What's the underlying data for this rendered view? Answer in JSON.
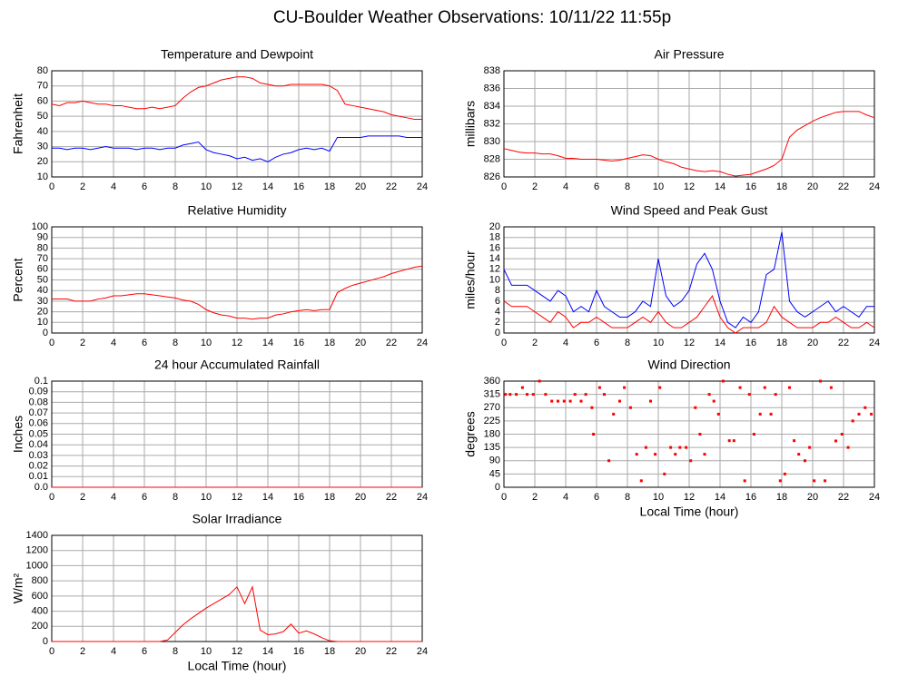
{
  "title": "CU-Boulder Weather Observations: 10/11/22 11:55p",
  "chart_data": [
    {
      "type": "line",
      "title": "Temperature and Dewpoint",
      "y_label": "Fahrenheit",
      "xlim": [
        0,
        24
      ],
      "xticks": [
        0,
        2,
        4,
        6,
        8,
        10,
        12,
        14,
        16,
        18,
        20,
        22,
        24
      ],
      "ylim": [
        10,
        80
      ],
      "yticks": [
        10,
        20,
        30,
        40,
        50,
        60,
        70,
        80
      ],
      "grid": true,
      "x": [
        0,
        0.5,
        1,
        1.5,
        2,
        2.5,
        3,
        3.5,
        4,
        4.5,
        5,
        5.5,
        6,
        6.5,
        7,
        7.5,
        8,
        8.5,
        9,
        9.5,
        10,
        10.5,
        11,
        11.5,
        12,
        12.5,
        13,
        13.5,
        14,
        14.5,
        15,
        15.5,
        16,
        16.5,
        17,
        17.5,
        18,
        18.5,
        19,
        19.5,
        20,
        20.5,
        21,
        21.5,
        22,
        22.5,
        23,
        23.5,
        24
      ],
      "series": [
        {
          "color": "#ff0000",
          "values": [
            58,
            57,
            59,
            59,
            60,
            59,
            58,
            58,
            57,
            57,
            56,
            55,
            55,
            56,
            55,
            56,
            57,
            62,
            66,
            69,
            70,
            72,
            74,
            75,
            76,
            76,
            75,
            72,
            71,
            70,
            70,
            71,
            71,
            71,
            71,
            71,
            70,
            67,
            58,
            57,
            56,
            55,
            54,
            53,
            51,
            50,
            49,
            48,
            48
          ]
        },
        {
          "color": "#0000ff",
          "values": [
            29,
            29,
            28,
            29,
            29,
            28,
            29,
            30,
            29,
            29,
            29,
            28,
            29,
            29,
            28,
            29,
            29,
            31,
            32,
            33,
            28,
            26,
            25,
            24,
            22,
            23,
            21,
            22,
            20,
            23,
            25,
            26,
            28,
            29,
            28,
            29,
            27,
            36,
            36,
            36,
            36,
            37,
            37,
            37,
            37,
            37,
            36,
            36,
            36
          ]
        }
      ]
    },
    {
      "type": "line",
      "title": "Air Pressure",
      "y_label": "millibars",
      "xlim": [
        0,
        24
      ],
      "xticks": [
        0,
        2,
        4,
        6,
        8,
        10,
        12,
        14,
        16,
        18,
        20,
        22,
        24
      ],
      "ylim": [
        826,
        838
      ],
      "yticks": [
        826,
        828,
        830,
        832,
        834,
        836,
        838
      ],
      "grid": true,
      "x": [
        0,
        0.5,
        1,
        1.5,
        2,
        2.5,
        3,
        3.5,
        4,
        4.5,
        5,
        5.5,
        6,
        6.5,
        7,
        7.5,
        8,
        8.5,
        9,
        9.5,
        10,
        10.5,
        11,
        11.5,
        12,
        12.5,
        13,
        13.5,
        14,
        14.5,
        15,
        15.5,
        16,
        16.5,
        17,
        17.5,
        18,
        18.5,
        19,
        19.5,
        20,
        20.5,
        21,
        21.5,
        22,
        22.5,
        23,
        23.5,
        24
      ],
      "series": [
        {
          "color": "#ff0000",
          "values": [
            829.2,
            829.0,
            828.8,
            828.7,
            828.7,
            828.6,
            828.6,
            828.4,
            828.1,
            828.1,
            828.0,
            828.0,
            828.0,
            827.9,
            827.8,
            827.9,
            828.1,
            828.3,
            828.5,
            828.4,
            828.0,
            827.7,
            827.5,
            827.1,
            826.9,
            826.7,
            826.6,
            826.7,
            826.6,
            826.3,
            826.1,
            826.2,
            826.3,
            826.6,
            826.9,
            827.3,
            828.0,
            830.5,
            831.3,
            831.8,
            832.3,
            832.7,
            833.0,
            833.3,
            833.4,
            833.4,
            833.4,
            833.0,
            832.7
          ]
        }
      ]
    },
    {
      "type": "line",
      "title": "Relative Humidity",
      "y_label": "Percent",
      "xlim": [
        0,
        24
      ],
      "xticks": [
        0,
        2,
        4,
        6,
        8,
        10,
        12,
        14,
        16,
        18,
        20,
        22,
        24
      ],
      "ylim": [
        0,
        100
      ],
      "yticks": [
        0,
        10,
        20,
        30,
        40,
        50,
        60,
        70,
        80,
        90,
        100
      ],
      "grid": true,
      "x": [
        0,
        0.5,
        1,
        1.5,
        2,
        2.5,
        3,
        3.5,
        4,
        4.5,
        5,
        5.5,
        6,
        6.5,
        7,
        7.5,
        8,
        8.5,
        9,
        9.5,
        10,
        10.5,
        11,
        11.5,
        12,
        12.5,
        13,
        13.5,
        14,
        14.5,
        15,
        15.5,
        16,
        16.5,
        17,
        17.5,
        18,
        18.5,
        19,
        19.5,
        20,
        20.5,
        21,
        21.5,
        22,
        22.5,
        23,
        23.5,
        24
      ],
      "series": [
        {
          "color": "#ff0000",
          "values": [
            32,
            32,
            32,
            30,
            30,
            30,
            32,
            33,
            35,
            35,
            36,
            37,
            37,
            36,
            35,
            34,
            33,
            31,
            30,
            27,
            22,
            19,
            17,
            16,
            14,
            14,
            13,
            14,
            14,
            17,
            18,
            20,
            21,
            22,
            21,
            22,
            22,
            38,
            42,
            45,
            47,
            49,
            51,
            53,
            56,
            58,
            60,
            62,
            63
          ]
        }
      ]
    },
    {
      "type": "line",
      "title": "Wind Speed and Peak Gust",
      "y_label": "miles/hour",
      "xlim": [
        0,
        24
      ],
      "xticks": [
        0,
        2,
        4,
        6,
        8,
        10,
        12,
        14,
        16,
        18,
        20,
        22,
        24
      ],
      "ylim": [
        0,
        20
      ],
      "yticks": [
        0,
        2,
        4,
        6,
        8,
        10,
        12,
        14,
        16,
        18,
        20
      ],
      "grid": true,
      "x": [
        0,
        0.5,
        1,
        1.5,
        2,
        2.5,
        3,
        3.5,
        4,
        4.5,
        5,
        5.5,
        6,
        6.5,
        7,
        7.5,
        8,
        8.5,
        9,
        9.5,
        10,
        10.5,
        11,
        11.5,
        12,
        12.5,
        13,
        13.5,
        14,
        14.5,
        15,
        15.5,
        16,
        16.5,
        17,
        17.5,
        18,
        18.5,
        19,
        19.5,
        20,
        20.5,
        21,
        21.5,
        22,
        22.5,
        23,
        23.5,
        24
      ],
      "series": [
        {
          "color": "#0000ff",
          "values": [
            12,
            9,
            9,
            9,
            8,
            7,
            6,
            8,
            7,
            4,
            5,
            4,
            8,
            5,
            4,
            3,
            3,
            4,
            6,
            5,
            14,
            7,
            5,
            6,
            8,
            13,
            15,
            12,
            6,
            2,
            1,
            3,
            2,
            4,
            11,
            12,
            19,
            6,
            4,
            3,
            4,
            5,
            6,
            4,
            5,
            4,
            3,
            5,
            5
          ]
        },
        {
          "color": "#ff0000",
          "values": [
            6,
            5,
            5,
            5,
            4,
            3,
            2,
            4,
            3,
            1,
            2,
            2,
            3,
            2,
            1,
            1,
            1,
            2,
            3,
            2,
            4,
            2,
            1,
            1,
            2,
            3,
            5,
            7,
            3,
            1,
            0,
            1,
            1,
            1,
            2,
            5,
            3,
            2,
            1,
            1,
            1,
            2,
            2,
            3,
            2,
            1,
            1,
            2,
            1
          ]
        }
      ]
    },
    {
      "type": "line",
      "title": "24 hour Accumulated Rainfall",
      "y_label": "Inches",
      "xlim": [
        0,
        24
      ],
      "xticks": [
        0,
        2,
        4,
        6,
        8,
        10,
        12,
        14,
        16,
        18,
        20,
        22,
        24
      ],
      "ylim": [
        0,
        0.1
      ],
      "yticks": [
        {
          "value": 0,
          "label": "0.0"
        },
        0.01,
        0.02,
        0.03,
        0.04,
        0.05,
        0.06,
        0.07,
        0.08,
        0.09,
        {
          "value": 0.1,
          "label": "0.1"
        }
      ],
      "grid": true,
      "x": [
        0,
        24
      ],
      "series": [
        {
          "color": "#ff0000",
          "values": [
            0,
            0
          ]
        }
      ]
    },
    {
      "type": "scatter",
      "title": "Wind Direction",
      "y_label": "degrees",
      "x_label": "Local Time (hour)",
      "xlim": [
        0,
        24
      ],
      "xticks": [
        0,
        2,
        4,
        6,
        8,
        10,
        12,
        14,
        16,
        18,
        20,
        22,
        24
      ],
      "ylim": [
        0,
        360
      ],
      "yticks": [
        0,
        45,
        90,
        135,
        180,
        225,
        270,
        315,
        360
      ],
      "grid": true,
      "x": [
        0.1,
        0.4,
        0.8,
        1.2,
        1.5,
        1.9,
        2.3,
        2.7,
        3.1,
        3.5,
        3.9,
        4.3,
        4.6,
        5.0,
        5.3,
        5.7,
        5.8,
        6.2,
        6.5,
        6.8,
        7.1,
        7.5,
        7.8,
        8.2,
        8.6,
        8.9,
        9.2,
        9.5,
        9.8,
        10.1,
        10.4,
        10.8,
        11.1,
        11.4,
        11.8,
        12.1,
        12.4,
        12.7,
        13.0,
        13.3,
        13.6,
        13.9,
        14.2,
        14.6,
        14.9,
        15.3,
        15.6,
        15.9,
        16.2,
        16.6,
        16.9,
        17.3,
        17.6,
        17.9,
        18.2,
        18.5,
        18.8,
        19.1,
        19.5,
        19.8,
        20.1,
        20.5,
        20.8,
        21.2,
        21.5,
        21.9,
        22.3,
        22.6,
        23.0,
        23.4,
        23.8
      ],
      "series": [
        {
          "color": "#ff0000",
          "values": [
            315,
            315,
            315,
            338,
            315,
            315,
            360,
            315,
            292,
            292,
            292,
            292,
            315,
            292,
            315,
            270,
            180,
            338,
            315,
            90,
            248,
            292,
            338,
            270,
            112,
            22,
            135,
            292,
            112,
            338,
            45,
            135,
            112,
            135,
            135,
            90,
            270,
            180,
            112,
            315,
            292,
            248,
            360,
            158,
            158,
            338,
            22,
            315,
            180,
            248,
            338,
            248,
            315,
            22,
            45,
            338,
            158,
            112,
            90,
            135,
            22,
            360,
            22,
            338,
            157,
            180,
            135,
            225,
            248,
            270,
            248
          ]
        }
      ]
    },
    {
      "type": "line",
      "title": "Solar Irradiance",
      "y_label": "W/m²",
      "x_label": "Local Time (hour)",
      "xlim": [
        0,
        24
      ],
      "xticks": [
        0,
        2,
        4,
        6,
        8,
        10,
        12,
        14,
        16,
        18,
        20,
        22,
        24
      ],
      "ylim": [
        0,
        1400
      ],
      "yticks": [
        0,
        200,
        400,
        600,
        800,
        1000,
        1200,
        1400
      ],
      "grid": true,
      "x": [
        0,
        0.5,
        1,
        1.5,
        2,
        2.5,
        3,
        3.5,
        4,
        4.5,
        5,
        5.5,
        6,
        6.5,
        7,
        7.5,
        8,
        8.5,
        9,
        9.5,
        10,
        10.5,
        11,
        11.5,
        12,
        12.5,
        13,
        13.5,
        14,
        14.5,
        15,
        15.5,
        16,
        16.5,
        17,
        17.5,
        18,
        18.5,
        19,
        19.5,
        20,
        20.5,
        21,
        21.5,
        22,
        22.5,
        23,
        23.5,
        24
      ],
      "series": [
        {
          "color": "#ff0000",
          "values": [
            0,
            0,
            0,
            0,
            0,
            0,
            0,
            0,
            0,
            0,
            0,
            0,
            0,
            0,
            0,
            20,
            120,
            220,
            300,
            370,
            440,
            500,
            560,
            620,
            720,
            500,
            720,
            150,
            90,
            100,
            130,
            230,
            110,
            140,
            100,
            50,
            10,
            0,
            0,
            0,
            0,
            0,
            0,
            0,
            0,
            0,
            0,
            0,
            0
          ]
        }
      ]
    }
  ]
}
